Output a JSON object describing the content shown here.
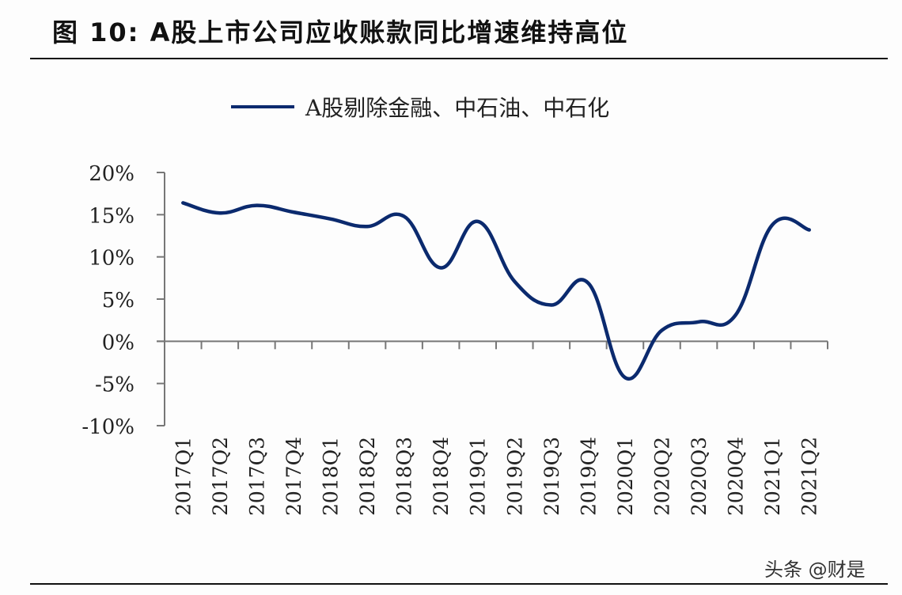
{
  "header": {
    "title": "图 10: A股上市公司应收账款同比增速维持高位"
  },
  "legend": {
    "items": [
      {
        "label": "A股剔除金融、中石油、中石化",
        "color": "#0b2a6e"
      }
    ]
  },
  "watermark": "头条 @财是",
  "chart_data": {
    "type": "line",
    "title": "图 10: A股上市公司应收账款同比增速维持高位",
    "xlabel": "",
    "ylabel": "",
    "categories": [
      "2017Q1",
      "2017Q2",
      "2017Q3",
      "2017Q4",
      "2018Q1",
      "2018Q2",
      "2018Q3",
      "2018Q4",
      "2019Q1",
      "2019Q2",
      "2019Q3",
      "2019Q4",
      "2020Q1",
      "2020Q2",
      "2020Q3",
      "2020Q4",
      "2021Q1",
      "2021Q2"
    ],
    "series": [
      {
        "name": "A股剔除金融、中石油、中石化",
        "color": "#0b2a6e",
        "values": [
          16.4,
          15.2,
          16.1,
          15.3,
          14.5,
          13.6,
          14.8,
          8.7,
          14.2,
          7.1,
          4.3,
          6.9,
          -4.3,
          1.3,
          2.3,
          3.1,
          13.8,
          13.2
        ]
      }
    ],
    "ylim": [
      -10,
      20
    ],
    "yticks": [
      20,
      15,
      10,
      5,
      0,
      -5,
      -10
    ],
    "ytick_labels": [
      "20%",
      "15%",
      "10%",
      "5%",
      "0%",
      "-5%",
      "-10%"
    ],
    "grid": false,
    "legend_position": "top",
    "smooth": true
  }
}
